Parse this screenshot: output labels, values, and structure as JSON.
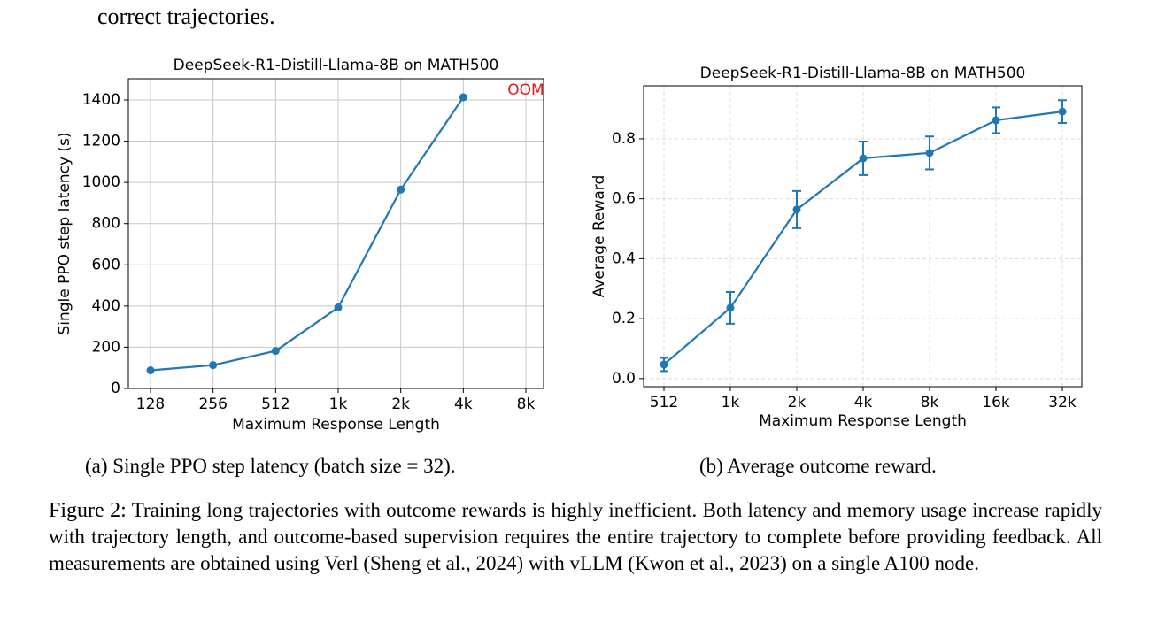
{
  "text_above": "correct trajectories.",
  "chart_data": [
    {
      "type": "line",
      "title": "DeepSeek-R1-Distill-Llama-8B on MATH500",
      "caption": "(a) Single PPO step latency (batch size = 32).",
      "x_label": "Maximum Response Length",
      "y_label": "Single PPO step latency (s)",
      "categories": [
        "128",
        "256",
        "512",
        "1k",
        "2k",
        "4k",
        "8k"
      ],
      "series": [
        {
          "name": "latency",
          "color": "#1f77b4",
          "values": [
            88,
            113,
            182,
            393,
            965,
            1413,
            null
          ]
        }
      ],
      "annotation": "OOM",
      "annotation_color": "#e8141a",
      "ylim": [
        0,
        1503
      ],
      "yticks": [
        0,
        200,
        400,
        600,
        800,
        1000,
        1200,
        1400
      ],
      "grid": true,
      "grid_style": "solid"
    },
    {
      "type": "line",
      "title": "DeepSeek-R1-Distill-Llama-8B on MATH500",
      "caption": "(b) Average outcome reward.",
      "x_label": "Maximum Response Length",
      "y_label": "Average Reward",
      "categories": [
        "512",
        "1k",
        "2k",
        "4k",
        "8k",
        "16k",
        "32k"
      ],
      "series": [
        {
          "name": "reward",
          "color": "#1f77b4",
          "values": [
            0.047,
            0.236,
            0.564,
            0.735,
            0.753,
            0.862,
            0.891
          ],
          "errors": [
            0.022,
            0.053,
            0.062,
            0.056,
            0.055,
            0.043,
            0.038
          ]
        }
      ],
      "ylim": [
        -0.027,
        0.977
      ],
      "yticks": [
        0.0,
        0.2,
        0.4,
        0.6,
        0.8
      ],
      "grid": true,
      "grid_style": "dashed"
    }
  ],
  "figure": {
    "label": "Figure 2:",
    "caption": "Training long trajectories with outcome rewards is highly inefficient. Both latency and memory usage increase rapidly with trajectory length, and outcome-based supervision requires the entire trajectory to complete before providing feedback. All measurements are obtained using Verl (Sheng et al., 2024) with vLLM (Kwon et al., 2023) on a single A100 node."
  }
}
